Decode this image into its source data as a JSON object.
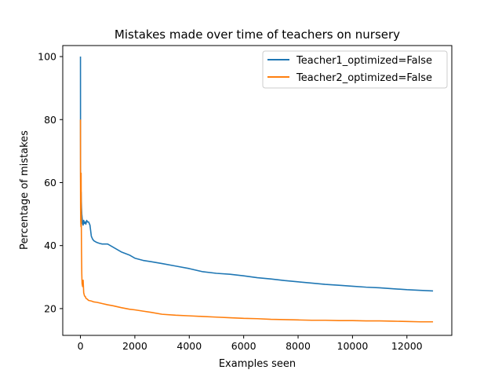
{
  "chart_data": {
    "type": "line",
    "title": "Mistakes made over time of teachers on nursery",
    "xlabel": "Examples seen",
    "ylabel": "Percentage of mistakes",
    "xlim": [
      -650,
      13650
    ],
    "ylim": [
      11.5,
      103.5
    ],
    "xticks": [
      0,
      2000,
      4000,
      6000,
      8000,
      10000,
      12000
    ],
    "yticks": [
      20,
      40,
      60,
      80,
      100
    ],
    "grid": false,
    "legend_position": "top-right",
    "series": [
      {
        "name": "Teacher1_optimized=False",
        "color": "#1f77b4",
        "x": [
          1,
          3,
          6,
          10,
          15,
          20,
          25,
          30,
          40,
          50,
          60,
          80,
          100,
          120,
          150,
          180,
          200,
          230,
          260,
          300,
          350,
          400,
          450,
          500,
          600,
          700,
          800,
          1000,
          1200,
          1500,
          1800,
          2000,
          2300,
          2600,
          3000,
          3500,
          4000,
          4500,
          5000,
          5500,
          6000,
          6500,
          7000,
          7500,
          8000,
          8500,
          9000,
          9500,
          10000,
          10500,
          11000,
          11500,
          12000,
          12500,
          12960
        ],
        "y": [
          100,
          75,
          62,
          56,
          52,
          51,
          57,
          55,
          52,
          50,
          49,
          47,
          46.5,
          48,
          47,
          47.5,
          46.8,
          48,
          47.5,
          47.5,
          46.5,
          43,
          42,
          41.5,
          41,
          40.7,
          40.5,
          40.5,
          39.5,
          38,
          37,
          36,
          35.3,
          34.9,
          34.3,
          33.5,
          32.7,
          31.7,
          31.2,
          30.9,
          30.4,
          29.8,
          29.4,
          28.9,
          28.5,
          28.1,
          27.7,
          27.4,
          27.1,
          26.8,
          26.6,
          26.3,
          26.0,
          25.8,
          25.6
        ]
      },
      {
        "name": "Teacher2_optimized=False",
        "color": "#ff7f0e",
        "x": [
          1,
          3,
          6,
          10,
          15,
          20,
          25,
          30,
          40,
          50,
          60,
          80,
          100,
          120,
          150,
          180,
          200,
          250,
          300,
          400,
          500,
          600,
          800,
          1000,
          1200,
          1500,
          1800,
          2000,
          2300,
          2600,
          3000,
          3500,
          4000,
          4500,
          5000,
          5500,
          6000,
          6500,
          7000,
          7500,
          8000,
          8500,
          9000,
          9500,
          10000,
          10500,
          11000,
          11500,
          12000,
          12500,
          12960
        ],
        "y": [
          80,
          60,
          52,
          48,
          47,
          46,
          63,
          50,
          38,
          31,
          28,
          27,
          29,
          25,
          24,
          23.8,
          23.3,
          23,
          22.6,
          22.4,
          22.1,
          22.0,
          21.6,
          21.2,
          20.9,
          20.3,
          19.8,
          19.6,
          19.2,
          18.8,
          18.2,
          17.9,
          17.7,
          17.5,
          17.3,
          17.1,
          16.9,
          16.8,
          16.6,
          16.5,
          16.4,
          16.3,
          16.3,
          16.2,
          16.2,
          16.1,
          16.1,
          16.0,
          15.9,
          15.8,
          15.8
        ]
      }
    ]
  }
}
